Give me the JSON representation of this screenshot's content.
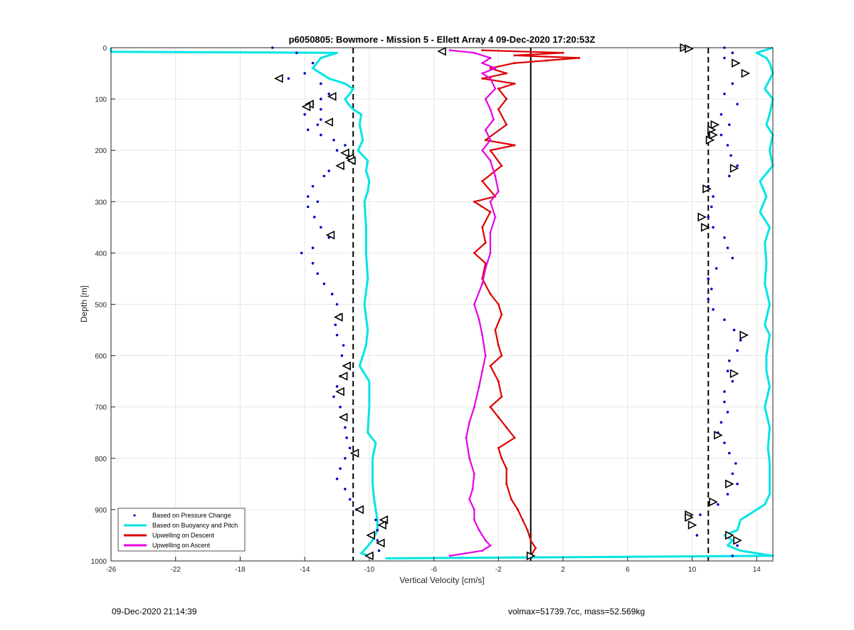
{
  "chart_data": {
    "type": "scatter",
    "title": "p6050805: Bowmore - Mission 5 - Ellett Array 4 09-Dec-2020 17:20:53Z",
    "xlabel": "Vertical Velocity [cm/s]",
    "ylabel": "Depth [m]",
    "xlim": [
      -26,
      15
    ],
    "ylim": [
      1000,
      0
    ],
    "y_reversed": true,
    "grid": true,
    "xticks": [
      -26,
      -22,
      -18,
      -14,
      -10,
      -6,
      -2,
      2,
      6,
      10,
      14
    ],
    "yticks": [
      0,
      100,
      200,
      300,
      400,
      500,
      600,
      700,
      800,
      900,
      1000
    ],
    "reference_lines": [
      {
        "x": -11,
        "style": "dashed",
        "color": "#000000"
      },
      {
        "x": 11,
        "style": "dashed",
        "color": "#000000"
      },
      {
        "x": 0,
        "style": "solid",
        "color": "#000000"
      }
    ],
    "legend_position": "bottom-left",
    "series": [
      {
        "name": "Based on Pressure Change",
        "kind": "points",
        "color": "#0000c8",
        "descent": {
          "depth": [
            0,
            10,
            30,
            50,
            60,
            70,
            90,
            100,
            110,
            120,
            130,
            140,
            150,
            160,
            170,
            180,
            190,
            200,
            210,
            220,
            230,
            240,
            250,
            270,
            290,
            300,
            310,
            330,
            350,
            370,
            390,
            400,
            420,
            440,
            460,
            480,
            500,
            520,
            540,
            560,
            580,
            600,
            620,
            640,
            660,
            680,
            700,
            720,
            740,
            760,
            780,
            800,
            820,
            840,
            860,
            880,
            900,
            920,
            940,
            960,
            980,
            990
          ],
          "velocity": [
            -16,
            -14.5,
            -13.5,
            -14,
            -15,
            -13,
            -12.5,
            -13,
            -13.5,
            -13,
            -14,
            -13,
            -13.2,
            -13.8,
            -13,
            -12.2,
            -11.5,
            -12,
            -11.3,
            -11.2,
            -11.8,
            -12.5,
            -12.8,
            -13.5,
            -13.8,
            -13.2,
            -13.8,
            -13.4,
            -13,
            -12.5,
            -13.5,
            -14.2,
            -13.5,
            -13.2,
            -12.8,
            -12.3,
            -12,
            -11.8,
            -12.1,
            -12,
            -11.6,
            -11.7,
            -11.5,
            -11.8,
            -12,
            -12.2,
            -11.8,
            -11.5,
            -11.5,
            -11.4,
            -11.2,
            -11.5,
            -11.8,
            -12,
            -11.5,
            -11.2,
            -10.8,
            -9.6,
            -9.5,
            -9.5,
            -9.4,
            -9.8
          ]
        },
        "ascent": {
          "depth": [
            0,
            10,
            20,
            30,
            50,
            70,
            90,
            110,
            130,
            150,
            170,
            190,
            210,
            230,
            250,
            270,
            290,
            310,
            330,
            350,
            370,
            390,
            410,
            430,
            450,
            470,
            490,
            510,
            530,
            550,
            570,
            590,
            610,
            630,
            650,
            670,
            690,
            710,
            730,
            750,
            770,
            790,
            810,
            830,
            850,
            870,
            890,
            910,
            930,
            950,
            970,
            990
          ],
          "velocity": [
            12,
            12.5,
            12,
            12.8,
            13.2,
            12.5,
            12,
            12.8,
            11.8,
            12.3,
            11.8,
            12.2,
            12.4,
            12.8,
            12.3,
            11,
            11.3,
            11.2,
            11,
            11.3,
            12,
            12.2,
            12.5,
            11.5,
            11,
            11.2,
            11,
            11.3,
            12,
            12.6,
            13,
            12.8,
            12.3,
            12.2,
            12.5,
            12,
            12,
            12.2,
            11.8,
            11.6,
            12,
            12.3,
            12.7,
            12.5,
            12.8,
            12.2,
            11.6,
            10.5,
            10,
            10.3,
            12.8,
            12.5
          ]
        }
      },
      {
        "name": "Based on Buoyancy and Pitch",
        "kind": "line",
        "color": "#00e5e5",
        "descent": {
          "depth": [
            0,
            8,
            10,
            20,
            40,
            60,
            70,
            80,
            90,
            100,
            110,
            120,
            130,
            150,
            180,
            200,
            220,
            240,
            260,
            280,
            300,
            350,
            400,
            450,
            500,
            550,
            580,
            600,
            620,
            650,
            700,
            750,
            770,
            800,
            850,
            880,
            900,
            920,
            940,
            960,
            975,
            985,
            990
          ],
          "velocity": [
            -26,
            -26,
            -12,
            -13,
            -13.5,
            -12.5,
            -11.5,
            -11,
            -11.2,
            -11.5,
            -11.3,
            -11,
            -10.5,
            -10.6,
            -10.4,
            -10.7,
            -10.1,
            -10.2,
            -10,
            -10.1,
            -10.3,
            -10.2,
            -10.2,
            -10.1,
            -10.3,
            -10.1,
            -10.2,
            -10.4,
            -10.6,
            -10,
            -10,
            -10.1,
            -9.6,
            -9.8,
            -9.8,
            -9.7,
            -9.6,
            -9.5,
            -9.5,
            -9.8,
            -10.2,
            -10.5,
            -10
          ]
        },
        "ascent": {
          "depth": [
            0,
            5,
            10,
            20,
            30,
            50,
            80,
            100,
            130,
            150,
            170,
            200,
            230,
            260,
            290,
            320,
            350,
            380,
            420,
            460,
            500,
            540,
            560,
            600,
            630,
            660,
            700,
            740,
            780,
            810,
            840,
            870,
            890,
            900,
            920,
            940,
            950,
            960,
            970,
            980,
            990,
            995
          ],
          "velocity": [
            15,
            14.5,
            14,
            14.6,
            14.8,
            15,
            14.5,
            15,
            14.8,
            14.6,
            15,
            14.8,
            15,
            14.2,
            14.6,
            14.2,
            14.8,
            14.5,
            14.6,
            14.5,
            14.8,
            14.5,
            14.8,
            14.6,
            14.6,
            14.8,
            14.5,
            14.8,
            14.7,
            14.8,
            14.8,
            14.8,
            14.5,
            14,
            13,
            12.8,
            12,
            12.5,
            12.2,
            13,
            15,
            -9
          ]
        }
      },
      {
        "name": "Upwelling on Descent",
        "kind": "line",
        "color": "#dc0000",
        "depth": [
          5,
          10,
          15,
          20,
          25,
          30,
          40,
          50,
          60,
          70,
          80,
          100,
          120,
          150,
          180,
          190,
          200,
          230,
          260,
          290,
          300,
          320,
          350,
          380,
          400,
          420,
          450,
          480,
          500,
          520,
          550,
          580,
          600,
          620,
          650,
          680,
          700,
          720,
          740,
          760,
          780,
          800,
          820,
          850,
          880,
          900,
          920,
          940,
          960,
          975,
          990
        ],
        "velocity": [
          -3,
          2,
          -1,
          3,
          1,
          -1,
          -2.5,
          -1.5,
          -3,
          -1,
          -2,
          -1.5,
          -2,
          -1.5,
          -2.8,
          -1,
          -2.5,
          -1.8,
          -3,
          -2.2,
          -3.5,
          -2.5,
          -3,
          -2.8,
          -3.5,
          -2.8,
          -3,
          -2.5,
          -2,
          -1.8,
          -2.2,
          -2,
          -1.8,
          -2.5,
          -2,
          -1.8,
          -2.5,
          -2,
          -1.5,
          -1,
          -2,
          -1.8,
          -1.5,
          -1.5,
          -1.2,
          -0.8,
          -0.5,
          -0.2,
          0,
          0.3,
          0
        ]
      },
      {
        "name": "Upwelling on Ascent",
        "kind": "line",
        "color": "#e600e6",
        "depth": [
          5,
          10,
          20,
          30,
          40,
          50,
          60,
          80,
          100,
          120,
          140,
          160,
          180,
          200,
          220,
          250,
          280,
          300,
          330,
          360,
          400,
          430,
          460,
          500,
          530,
          560,
          600,
          630,
          660,
          700,
          730,
          760,
          800,
          830,
          860,
          880,
          900,
          920,
          940,
          960,
          970,
          980,
          990
        ],
        "velocity": [
          -5,
          -3.5,
          -2.5,
          -3,
          -2.2,
          -3,
          -2.5,
          -2.2,
          -2.8,
          -2.5,
          -2.3,
          -2.8,
          -2.5,
          -3,
          -2.5,
          -2.2,
          -2,
          -2.5,
          -2.2,
          -2.5,
          -2.5,
          -2.8,
          -3,
          -3.5,
          -3.2,
          -3,
          -2.8,
          -3,
          -3.2,
          -3.5,
          -3.8,
          -4,
          -3.8,
          -3.5,
          -3.6,
          -3.8,
          -3.5,
          -3.5,
          -3.2,
          -2.8,
          -2.5,
          -3,
          -5
        ]
      }
    ],
    "markers": {
      "descent": {
        "depth": [
          60,
          95,
          110,
          115,
          145,
          205,
          215,
          220,
          230,
          365,
          525,
          620,
          640,
          670,
          720,
          790,
          900,
          920,
          930,
          950,
          965,
          990
        ],
        "velocity": [
          -15.6,
          -12.3,
          -13.7,
          -13.9,
          -12.5,
          -11.5,
          -11.2,
          -11.1,
          -11.8,
          -12.4,
          -11.9,
          -11.4,
          -11.6,
          -11.8,
          -11.6,
          -10.9,
          -10.6,
          -9.1,
          -9.2,
          -9.9,
          -9.3,
          -10
        ]
      },
      "ascent": {
        "depth": [
          0,
          2,
          30,
          50,
          150,
          160,
          170,
          180,
          235,
          275,
          330,
          350,
          560,
          635,
          755,
          850,
          885,
          910,
          915,
          930,
          950,
          960,
          990
        ],
        "velocity": [
          9.5,
          9.8,
          12.7,
          13.3,
          11.4,
          11.2,
          11.3,
          11.1,
          12.6,
          10.9,
          10.6,
          10.8,
          13.2,
          12.6,
          11.6,
          12.3,
          11.3,
          9.8,
          9.8,
          10,
          12.3,
          12.8,
          0
        ]
      },
      "top": {
        "depth": [
          7
        ],
        "velocity": [
          -5.5
        ]
      }
    }
  },
  "footer": {
    "left": "09-Dec-2020 21:14:39",
    "right": "volmax=51739.7cc, mass=52.569kg"
  }
}
